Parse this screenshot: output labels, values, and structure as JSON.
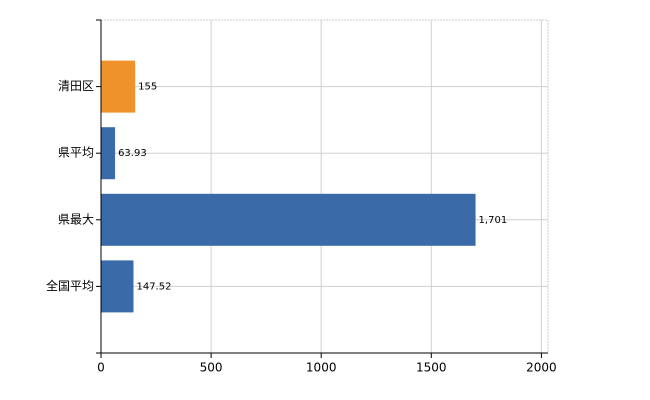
{
  "chart_data": {
    "type": "bar",
    "orientation": "horizontal",
    "categories": [
      "清田区",
      "県平均",
      "県最大",
      "全国平均"
    ],
    "values": [
      155,
      63.93,
      1701,
      147.52
    ],
    "value_labels": [
      "155",
      "63.93",
      "1,701",
      "147.52"
    ],
    "colors": [
      "#f0922c",
      "#3a6aa8",
      "#3a6aa8",
      "#3a6aa8"
    ],
    "xlim": [
      0,
      2030
    ],
    "xticks": [
      0,
      500,
      1000,
      1500,
      2000
    ],
    "grid": true
  }
}
